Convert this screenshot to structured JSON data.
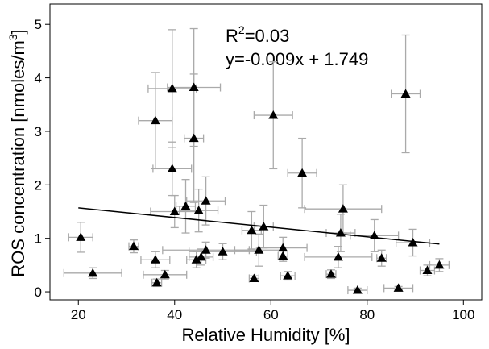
{
  "chart_data": {
    "type": "scatter",
    "x_label": "Relative Humidity [%]",
    "y_label": {
      "base": "ROS concentration [nmoles/m",
      "sup": "3",
      "rest": "]"
    },
    "annotations": {
      "r2": {
        "base": "R",
        "sup": "2",
        "rest": "=0.03"
      },
      "equation": "y=-0.009x + 1.749"
    },
    "xlim": [
      14.1,
      103.8
    ],
    "ylim": [
      -0.15,
      5.38
    ],
    "xticks": [
      20,
      40,
      60,
      80,
      100
    ],
    "yticks": [
      0,
      1,
      2,
      3,
      4,
      5
    ],
    "series": [
      {
        "color": "#000000",
        "error_color": "#aaaaaa",
        "x": [
          20.5,
          23,
          31.5,
          36,
          36,
          36.3,
          38,
          39.5,
          39.5,
          40,
          42.3,
          44,
          44,
          45,
          44.5,
          45.5,
          46.5,
          46.5,
          50,
          56,
          56.5,
          57.5,
          58.5,
          60.5,
          62.5,
          62.5,
          63.5,
          66.5,
          72.5,
          74,
          74.5,
          75,
          78,
          81.5,
          83,
          86.5,
          88,
          89.5,
          92.5,
          95
        ],
        "values": [
          1.02,
          0.35,
          0.85,
          3.2,
          0.6,
          0.17,
          0.32,
          3.8,
          2.3,
          1.5,
          1.6,
          3.82,
          2.87,
          1.52,
          0.6,
          0.65,
          1.7,
          0.78,
          0.75,
          1.15,
          0.25,
          0.78,
          1.22,
          3.3,
          0.82,
          0.67,
          0.3,
          2.22,
          0.33,
          0.65,
          1.1,
          1.55,
          0.03,
          1.05,
          0.63,
          0.07,
          3.7,
          0.92,
          0.4,
          0.5
        ],
        "xerr": [
          2.5,
          6,
          1,
          3.5,
          3,
          1,
          4.5,
          5,
          4,
          5,
          2,
          5.5,
          2,
          4,
          2,
          2.5,
          4,
          9,
          7,
          2,
          1,
          5,
          2,
          4,
          5,
          1,
          1.5,
          3,
          1,
          7,
          3,
          8,
          2,
          5,
          1,
          3,
          3,
          3.5,
          1.5,
          2
        ],
        "yerr": [
          0.28,
          0.1,
          0.12,
          0.9,
          0.15,
          0.07,
          0.08,
          1.1,
          0.5,
          0.3,
          0.5,
          1.1,
          1.2,
          0.4,
          0.15,
          0.15,
          0.45,
          0.15,
          0.15,
          0.35,
          0.05,
          0.3,
          0.4,
          1.0,
          0.2,
          0.1,
          0.08,
          0.65,
          0.08,
          0.2,
          0.35,
          0.45,
          0.04,
          0.3,
          0.15,
          0.03,
          1.1,
          0.25,
          0.1,
          0.12
        ]
      }
    ],
    "fit": {
      "x": [
        20,
        95
      ],
      "values": [
        1.569,
        0.894
      ],
      "color": "#000000"
    }
  }
}
